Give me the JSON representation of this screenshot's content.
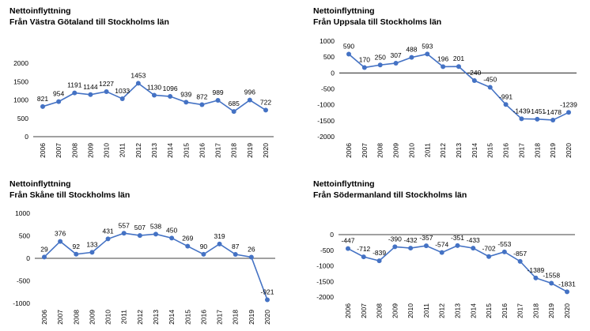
{
  "chart_data": [
    {
      "type": "line",
      "title": "Nettoinflyttning",
      "subtitle": "Från Västra Götaland till Stockholms län",
      "x": [
        "2006",
        "2007",
        "2008",
        "2009",
        "2010",
        "2011",
        "2012",
        "2013",
        "2014",
        "2015",
        "2016",
        "2017",
        "2018",
        "2019",
        "2020"
      ],
      "values": [
        821,
        954,
        1191,
        1144,
        1227,
        1033,
        1453,
        1130,
        1096,
        939,
        872,
        989,
        685,
        996,
        722
      ],
      "data_labels": [
        "821",
        "954",
        "1191",
        "1144",
        "1227",
        "1033",
        "1453",
        "1130",
        "1096",
        "939",
        "872",
        "989",
        "685",
        "996",
        "722"
      ],
      "ylim": [
        0,
        2000
      ],
      "yticks": [
        "0",
        "500",
        "1000",
        "1500",
        "2000"
      ],
      "color": "#4472C4",
      "grid": false
    },
    {
      "type": "line",
      "title": "Nettoinflyttning",
      "subtitle": "Från Uppsala till Stockholms län",
      "x": [
        "2006",
        "2007",
        "2008",
        "2009",
        "2010",
        "2011",
        "2012",
        "2013",
        "2014",
        "2015",
        "2016",
        "2017",
        "2018",
        "2019",
        "2020"
      ],
      "values": [
        590,
        170,
        250,
        307,
        488,
        593,
        196,
        201,
        -240,
        -450,
        -991,
        -1439,
        -1451,
        -1478,
        -1239
      ],
      "data_labels": [
        "590",
        "170",
        "250",
        "307",
        "488",
        "593",
        "196",
        "201",
        "-240",
        "-450",
        "-991",
        "-1439",
        "-1451",
        "-1478",
        "-1239"
      ],
      "ylim": [
        -2000,
        1000
      ],
      "yticks": [
        "-2000",
        "-1500",
        "-1000",
        "-500",
        "0",
        "500",
        "1000"
      ],
      "color": "#4472C4",
      "grid": false
    },
    {
      "type": "line",
      "title": "Nettoinflyttning",
      "subtitle": "Från Skåne till Stockholms län",
      "x": [
        "2006",
        "2007",
        "2008",
        "2009",
        "2010",
        "2011",
        "2012",
        "2013",
        "2014",
        "2015",
        "2016",
        "2017",
        "2018",
        "2019",
        "2020"
      ],
      "values": [
        29,
        376,
        92,
        133,
        431,
        557,
        507,
        538,
        450,
        269,
        90,
        319,
        87,
        26,
        -921
      ],
      "data_labels": [
        "29",
        "376",
        "92",
        "133",
        "431",
        "557",
        "507",
        "538",
        "450",
        "269",
        "90",
        "319",
        "87",
        "26",
        "-921"
      ],
      "ylim": [
        -1000,
        1000
      ],
      "yticks": [
        "-1000",
        "-500",
        "0",
        "500",
        "1000"
      ],
      "color": "#4472C4",
      "grid": false
    },
    {
      "type": "line",
      "title": "Nettoinflyttning",
      "subtitle": "Från Södermanland till Stockholms län",
      "x": [
        "2006",
        "2007",
        "2008",
        "2009",
        "2010",
        "2011",
        "2012",
        "2013",
        "2014",
        "2015",
        "2016",
        "2017",
        "2018",
        "2019",
        "2020"
      ],
      "values": [
        -447,
        -712,
        -839,
        -390,
        -432,
        -357,
        -574,
        -351,
        -433,
        -702,
        -553,
        -857,
        -1389,
        -1558,
        -1831
      ],
      "data_labels": [
        "-447",
        "-712",
        "-839",
        "-390",
        "-432",
        "-357",
        "-574",
        "-351",
        "-433",
        "-702",
        "-553",
        "-857",
        "-1389",
        "-1558",
        "-1831"
      ],
      "ylim": [
        -2000,
        0
      ],
      "yticks": [
        "-2000",
        "-1500",
        "-1000",
        "-500",
        "0"
      ],
      "color": "#4472C4",
      "grid": false
    }
  ]
}
